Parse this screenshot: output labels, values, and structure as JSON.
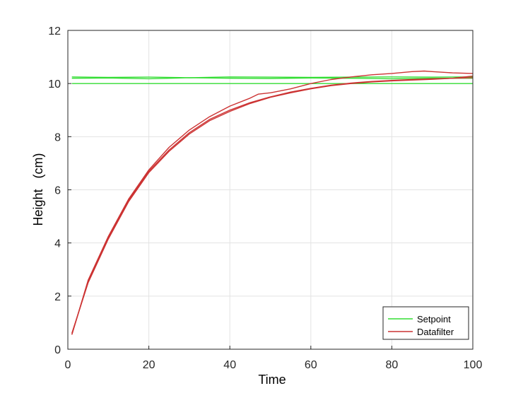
{
  "chart_data": {
    "type": "line",
    "xlabel": "Time",
    "ylabel": "Height   (cm)",
    "xlim": [
      0,
      100
    ],
    "ylim": [
      0,
      12
    ],
    "xticks": [
      0,
      20,
      40,
      60,
      80,
      100
    ],
    "yticks": [
      0,
      2,
      4,
      6,
      8,
      10,
      12
    ],
    "grid": true,
    "legend_position": "bottom-right",
    "series": [
      {
        "name": "Setpoint",
        "color": "#33dd33",
        "lines": [
          {
            "x": [
              1,
              100
            ],
            "y": [
              10.0,
              10.0
            ]
          },
          {
            "x": [
              1,
              10,
              20,
              30,
              40,
              50,
              60,
              70,
              80,
              90,
              100
            ],
            "y": [
              10.2,
              10.21,
              10.18,
              10.22,
              10.2,
              10.19,
              10.21,
              10.2,
              10.18,
              10.2,
              10.2
            ]
          },
          {
            "x": [
              1,
              10,
              20,
              30,
              40,
              50,
              60,
              70,
              80,
              90,
              100
            ],
            "y": [
              10.25,
              10.23,
              10.24,
              10.22,
              10.25,
              10.24,
              10.23,
              10.24,
              10.25,
              10.24,
              10.25
            ]
          }
        ]
      },
      {
        "name": "Datafilter",
        "color": "#cc3333",
        "lines": [
          {
            "x": [
              1,
              5,
              10,
              15,
              20,
              25,
              30,
              35,
              40,
              45,
              50,
              55,
              60,
              65,
              70,
              75,
              80,
              85,
              90,
              95,
              100
            ],
            "y": [
              0.55,
              2.55,
              4.2,
              5.6,
              6.7,
              7.5,
              8.15,
              8.65,
              9.0,
              9.28,
              9.5,
              9.68,
              9.82,
              9.94,
              10.02,
              10.08,
              10.12,
              10.15,
              10.18,
              10.2,
              10.22
            ]
          },
          {
            "x": [
              1,
              5,
              10,
              15,
              20,
              25,
              30,
              35,
              40,
              45,
              47,
              50,
              55,
              60,
              65,
              70,
              75,
              80,
              85,
              88,
              90,
              95,
              100
            ],
            "y": [
              0.55,
              2.6,
              4.25,
              5.65,
              6.75,
              7.6,
              8.25,
              8.75,
              9.15,
              9.45,
              9.6,
              9.65,
              9.8,
              10.0,
              10.15,
              10.25,
              10.33,
              10.38,
              10.45,
              10.47,
              10.45,
              10.4,
              10.38
            ]
          },
          {
            "x": [
              1,
              5,
              10,
              15,
              20,
              25,
              30,
              35,
              40,
              45,
              50,
              55,
              60,
              65,
              70,
              75,
              80,
              85,
              90,
              95,
              100
            ],
            "y": [
              0.6,
              2.5,
              4.15,
              5.55,
              6.65,
              7.45,
              8.1,
              8.6,
              8.95,
              9.25,
              9.48,
              9.65,
              9.8,
              9.92,
              10.0,
              10.06,
              10.1,
              10.13,
              10.16,
              10.2,
              10.28
            ]
          }
        ]
      }
    ]
  }
}
